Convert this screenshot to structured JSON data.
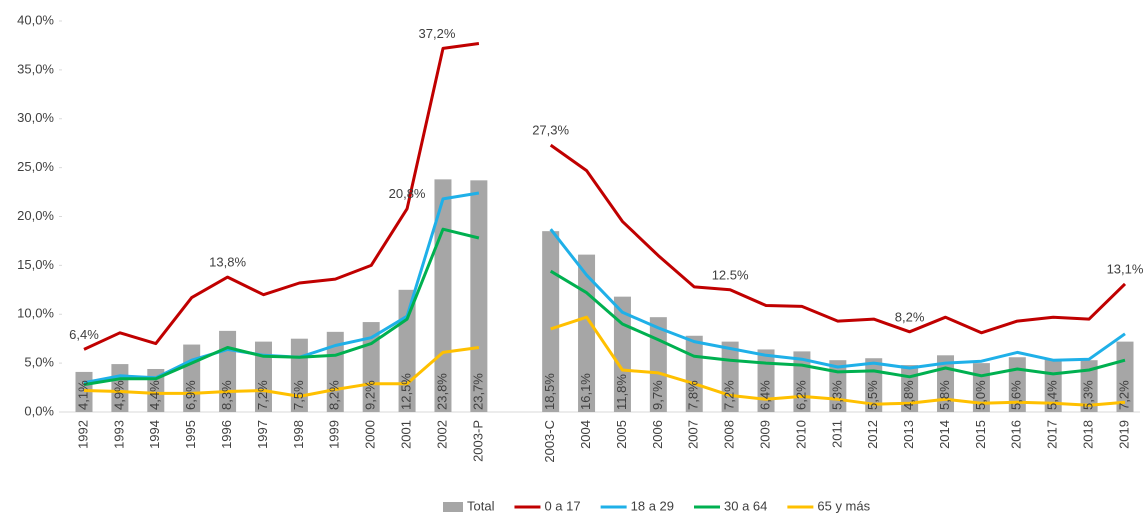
{
  "chart_data": {
    "type": "bar",
    "categories": [
      "1992",
      "1993",
      "1994",
      "1995",
      "1996",
      "1997",
      "1998",
      "1999",
      "2000",
      "2001",
      "2002",
      "2003-P",
      null,
      "2003-C",
      "2004",
      "2005",
      "2006",
      "2007",
      "2008",
      "2009",
      "2010",
      "2011",
      "2012",
      "2013",
      "2014",
      "2015",
      "2016",
      "2017",
      "2018",
      "2019"
    ],
    "ylim": [
      0,
      40
    ],
    "yticks": [
      {
        "value": 0,
        "label": "0,0%"
      },
      {
        "value": 5,
        "label": "5,0%"
      },
      {
        "value": 10,
        "label": "10,0%"
      },
      {
        "value": 15,
        "label": "15,0%"
      },
      {
        "value": 20,
        "label": "20,0%"
      },
      {
        "value": 25,
        "label": "25,0%"
      },
      {
        "value": 30,
        "label": "30,0%"
      },
      {
        "value": 35,
        "label": "35,0%"
      },
      {
        "value": 40,
        "label": "40,0%"
      }
    ],
    "grid": false,
    "legend": "bottom",
    "series": [
      {
        "name": "Total",
        "type": "bar",
        "color": "#a6a6a6",
        "values": [
          4.1,
          4.9,
          4.4,
          6.9,
          8.3,
          7.2,
          7.5,
          8.2,
          9.2,
          12.5,
          23.8,
          23.7,
          null,
          18.5,
          16.1,
          11.8,
          9.7,
          7.8,
          7.2,
          6.4,
          6.2,
          5.3,
          5.5,
          4.8,
          5.8,
          5.0,
          5.6,
          5.4,
          5.3,
          7.2
        ],
        "value_labels": [
          "4,1%",
          "4,9%",
          "4,4%",
          "6,9%",
          "8,3%",
          "7,2%",
          "7,5%",
          "8,2%",
          "9,2%",
          "12,5%",
          "23,8%",
          "23,7%",
          null,
          "18,5%",
          "16,1%",
          "11,8%",
          "9,7%",
          "7,8%",
          "7,2%",
          "6,4%",
          "6,2%",
          "5,3%",
          "5,5%",
          "4,8%",
          "5,8%",
          "5,0%",
          "5,6%",
          "5,4%",
          "5,3%",
          "7,2%"
        ]
      },
      {
        "name": "0 a 17",
        "type": "line",
        "color": "#c00000",
        "values": [
          6.4,
          8.1,
          7.0,
          11.7,
          13.8,
          12.0,
          13.2,
          13.6,
          15.0,
          20.8,
          37.2,
          37.7,
          null,
          27.3,
          24.7,
          19.5,
          16.0,
          12.8,
          12.5,
          10.9,
          10.8,
          9.3,
          9.5,
          8.2,
          9.7,
          8.1,
          9.3,
          9.7,
          9.5,
          13.1
        ],
        "value_labels": [
          "6,4%",
          null,
          null,
          null,
          "13,8%",
          null,
          null,
          null,
          null,
          "20,8%",
          "37,2%",
          null,
          null,
          "27,3%",
          null,
          null,
          null,
          null,
          "12.5%",
          null,
          null,
          null,
          null,
          "8,2%",
          null,
          null,
          null,
          null,
          null,
          "13,1%"
        ]
      },
      {
        "name": "18 a 29",
        "type": "line",
        "color": "#1fb0e8",
        "values": [
          3.0,
          3.7,
          3.5,
          5.3,
          6.4,
          5.8,
          5.6,
          6.8,
          7.6,
          9.8,
          21.8,
          22.4,
          null,
          18.7,
          14.0,
          10.2,
          8.6,
          7.2,
          6.5,
          5.8,
          5.4,
          4.6,
          5.0,
          4.5,
          5.0,
          5.2,
          6.1,
          5.3,
          5.4,
          8.0
        ]
      },
      {
        "name": "30 a 64",
        "type": "line",
        "color": "#00b050",
        "values": [
          2.8,
          3.4,
          3.4,
          5.0,
          6.6,
          5.7,
          5.6,
          5.8,
          7.0,
          9.5,
          18.7,
          17.8,
          null,
          14.4,
          12.2,
          9.0,
          7.4,
          5.7,
          5.3,
          5.0,
          4.8,
          4.1,
          4.2,
          3.6,
          4.5,
          3.7,
          4.4,
          3.9,
          4.3,
          5.3
        ]
      },
      {
        "name": "65 y más",
        "type": "line",
        "color": "#ffc000",
        "values": [
          2.2,
          2.1,
          1.9,
          1.9,
          2.1,
          2.2,
          1.6,
          2.3,
          2.9,
          2.9,
          6.1,
          6.6,
          null,
          8.5,
          9.7,
          4.3,
          4.0,
          2.9,
          1.7,
          1.3,
          1.6,
          1.3,
          0.8,
          0.9,
          1.3,
          0.9,
          1.0,
          0.9,
          0.7,
          1.0
        ]
      }
    ]
  }
}
